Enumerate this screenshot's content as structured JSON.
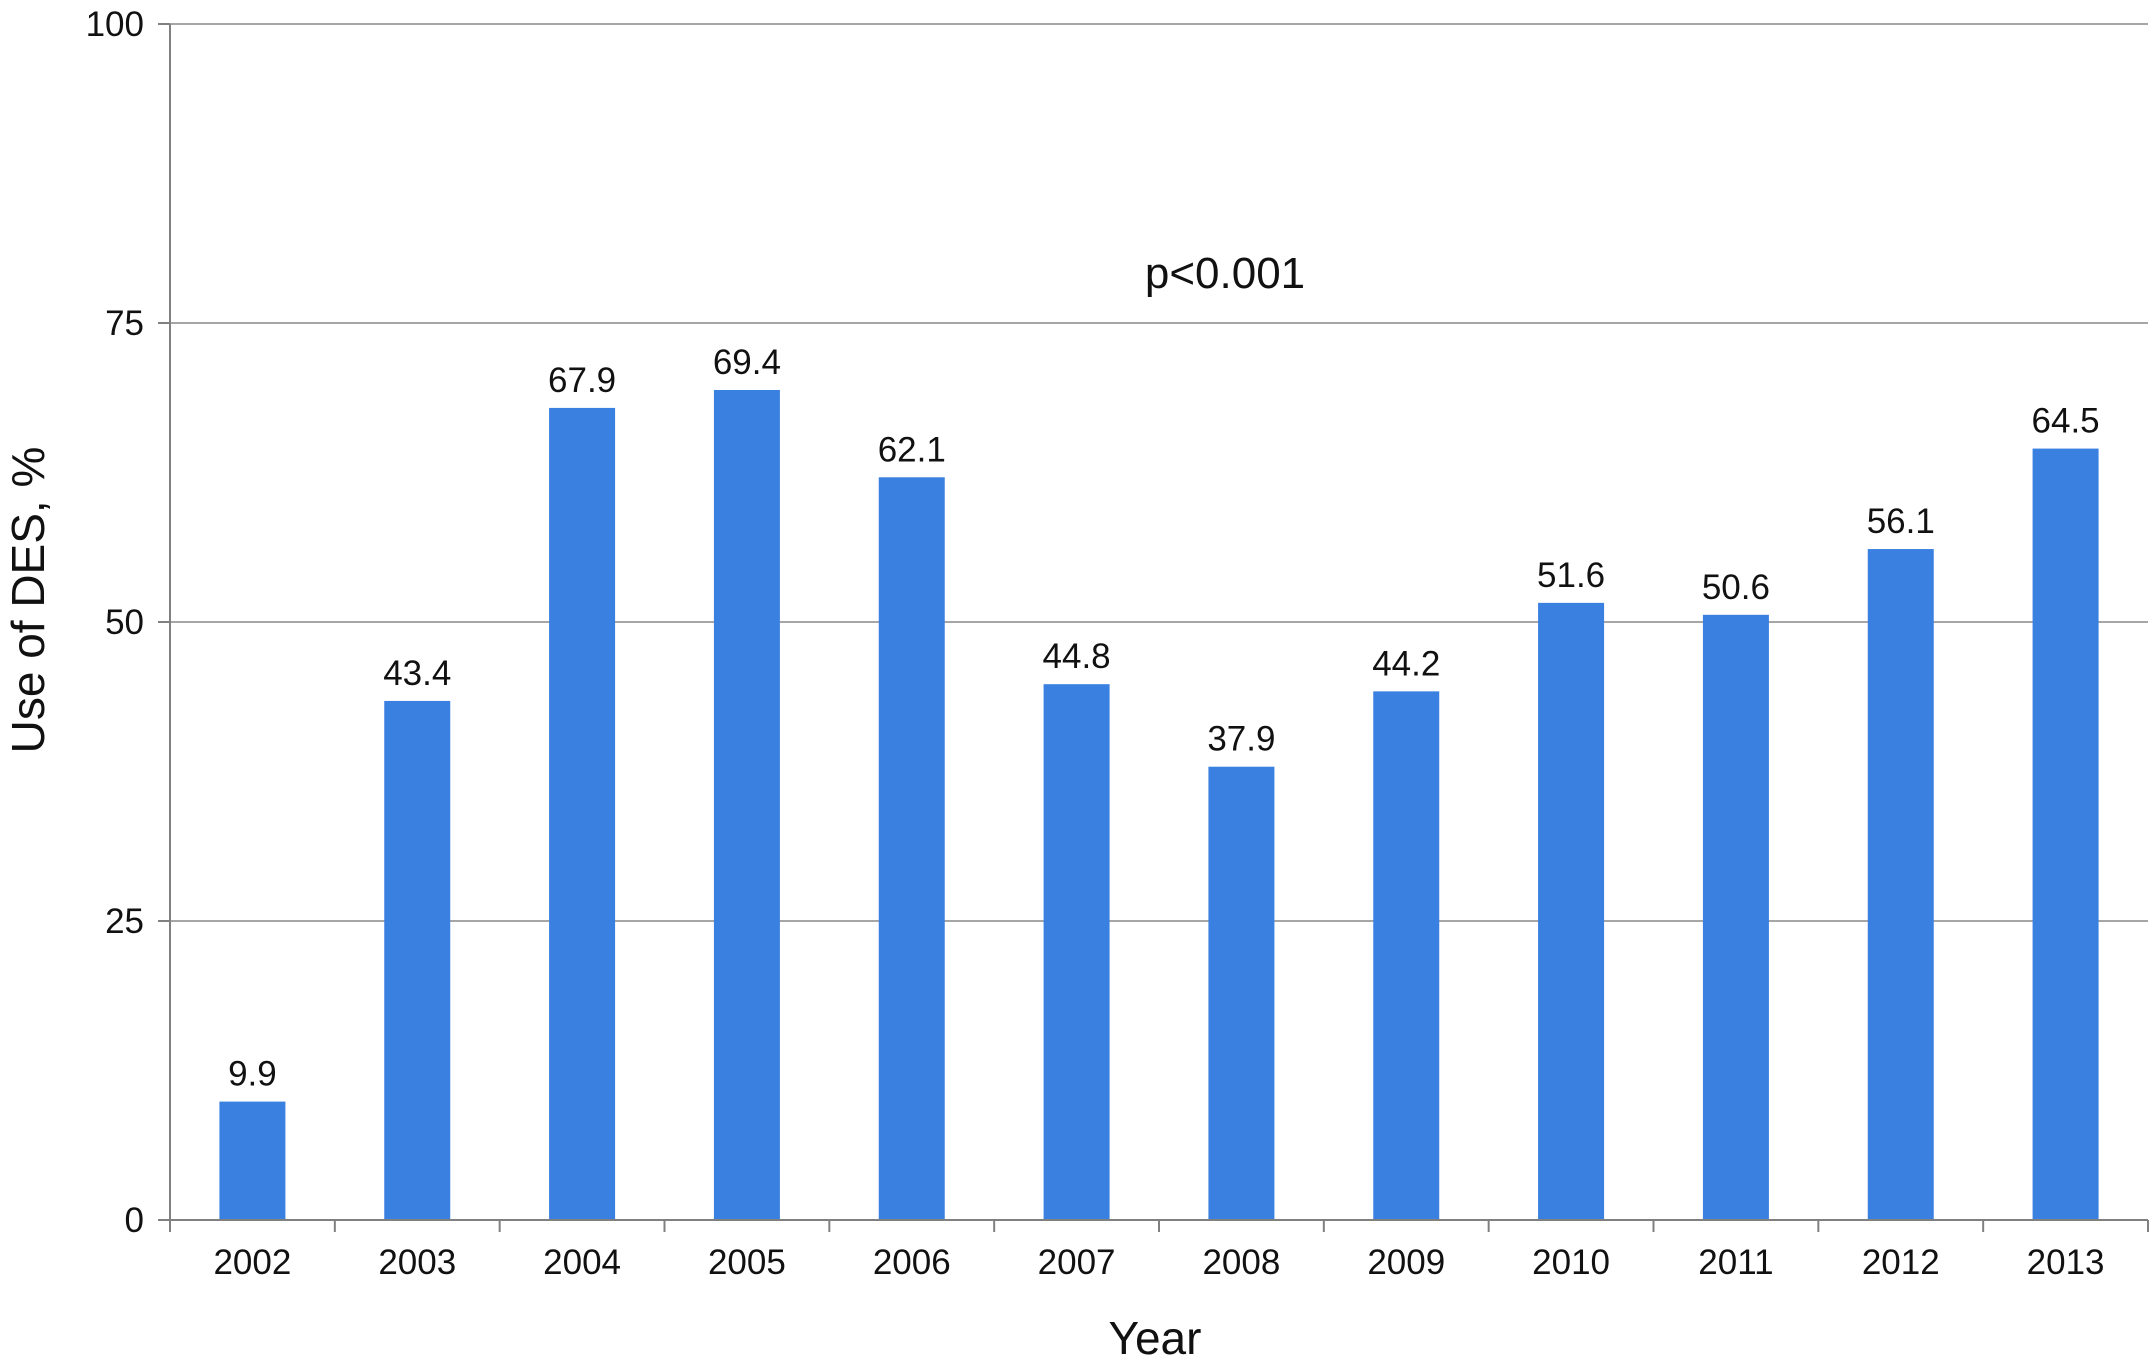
{
  "chart_data": {
    "type": "bar",
    "categories": [
      "2002",
      "2003",
      "2004",
      "2005",
      "2006",
      "2007",
      "2008",
      "2009",
      "2010",
      "2011",
      "2012",
      "2013"
    ],
    "values": [
      9.9,
      43.4,
      67.9,
      69.4,
      62.1,
      44.8,
      37.9,
      44.2,
      51.6,
      50.6,
      56.1,
      64.5
    ],
    "data_labels": [
      "9.9",
      "43.4",
      "67.9",
      "69.4",
      "62.1",
      "44.8",
      "37.9",
      "44.2",
      "51.6",
      "50.6",
      "56.1",
      "64.5"
    ],
    "title": "",
    "xlabel": "Year",
    "ylabel": "Use of DES, %",
    "ylim": [
      0,
      100
    ],
    "yticks": [
      0,
      25,
      50,
      75,
      100
    ],
    "ytick_labels": [
      "0",
      "25",
      "50",
      "75",
      "100"
    ],
    "annotation": "p<0.001",
    "grid": true,
    "legend": "none",
    "colors": {
      "bar": "#3a80e0",
      "grid": "#a6a6a6",
      "axis": "#808080"
    }
  }
}
